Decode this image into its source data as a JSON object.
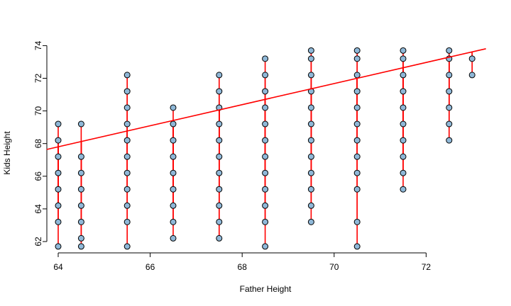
{
  "chart_data": {
    "type": "scatter",
    "title": "",
    "xlabel": "Father Height",
    "ylabel": "Kids Height",
    "xlim": [
      64,
      73.3
    ],
    "ylim": [
      61.5,
      74
    ],
    "x_ticks": [
      64,
      66,
      68,
      70,
      72
    ],
    "y_ticks": [
      62,
      64,
      66,
      68,
      70,
      72,
      74
    ],
    "grid": false,
    "legend": "none",
    "point_fill": "#8fb8d8",
    "point_stroke": "#000000",
    "line_color": "#ff0000",
    "regression_line": {
      "intercept": 26.456,
      "slope": 0.646
    },
    "points": [
      {
        "x": 64.0,
        "y": [
          61.7,
          63.2,
          64.2,
          65.2,
          66.2,
          67.2,
          68.2,
          69.2
        ]
      },
      {
        "x": 64.5,
        "y": [
          61.7,
          62.2,
          63.2,
          64.2,
          65.2,
          66.2,
          67.2,
          69.2
        ]
      },
      {
        "x": 65.5,
        "y": [
          61.7,
          63.2,
          64.2,
          65.2,
          66.2,
          67.2,
          68.2,
          69.2,
          70.2,
          71.2,
          72.2
        ]
      },
      {
        "x": 66.5,
        "y": [
          62.2,
          63.2,
          64.2,
          65.2,
          66.2,
          67.2,
          68.2,
          69.2,
          70.2
        ]
      },
      {
        "x": 67.5,
        "y": [
          62.2,
          63.2,
          64.2,
          65.2,
          66.2,
          67.2,
          68.2,
          69.2,
          70.2,
          71.2,
          72.2
        ]
      },
      {
        "x": 68.5,
        "y": [
          61.7,
          63.2,
          64.2,
          65.2,
          66.2,
          67.2,
          68.2,
          69.2,
          70.2,
          71.2,
          72.2,
          73.2
        ]
      },
      {
        "x": 69.5,
        "y": [
          63.2,
          64.2,
          65.2,
          66.2,
          67.2,
          68.2,
          69.2,
          70.2,
          71.2,
          72.2,
          73.2,
          73.7
        ]
      },
      {
        "x": 70.5,
        "y": [
          61.7,
          63.2,
          65.2,
          66.2,
          67.2,
          68.2,
          69.2,
          70.2,
          71.2,
          72.2,
          73.2,
          73.7
        ]
      },
      {
        "x": 71.5,
        "y": [
          65.2,
          66.2,
          67.2,
          68.2,
          69.2,
          70.2,
          71.2,
          72.2,
          73.2,
          73.7
        ]
      },
      {
        "x": 72.5,
        "y": [
          68.2,
          69.2,
          70.2,
          71.2,
          72.2,
          73.2,
          73.7
        ]
      },
      {
        "x": 73.0,
        "y": [
          72.2,
          73.2
        ]
      }
    ]
  }
}
